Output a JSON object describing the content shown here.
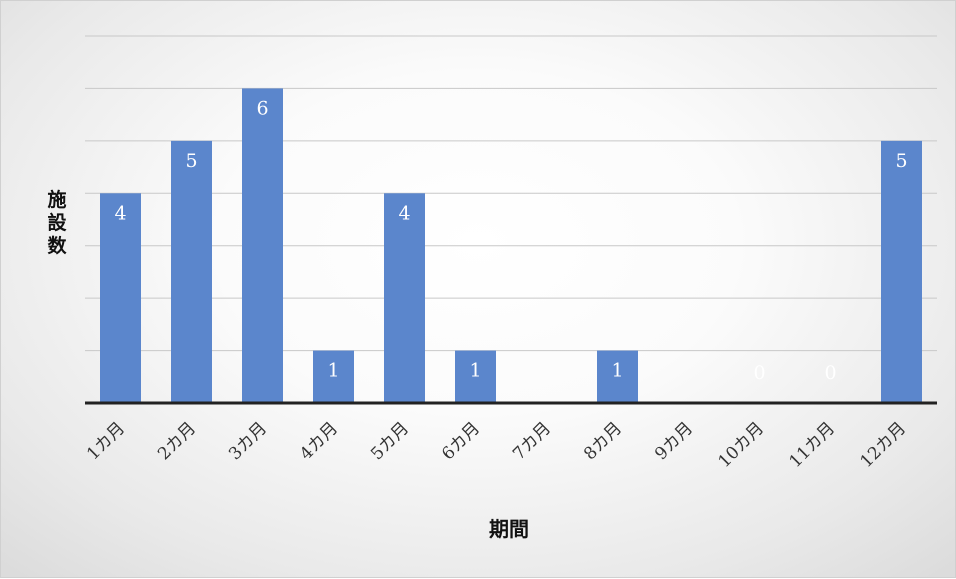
{
  "chart_data": {
    "type": "bar",
    "title": "",
    "xlabel": "期間",
    "ylabel": "施設数",
    "categories": [
      "1カ月",
      "2カ月",
      "3カ月",
      "4カ月",
      "5カ月",
      "6カ月",
      "7カ月",
      "8カ月",
      "9カ月",
      "10カ月",
      "11カ月",
      "12カ月"
    ],
    "values": [
      4,
      5,
      6,
      1,
      4,
      1,
      0,
      1,
      0,
      0,
      0,
      5
    ],
    "data_labels": [
      "4",
      "5",
      "6",
      "1",
      "4",
      "1",
      "",
      "1",
      "",
      "0",
      "0",
      "5"
    ],
    "ylim": [
      0,
      7
    ],
    "gridlines": true,
    "y_tick_labels_shown": false,
    "bar_color": "#5b86cc",
    "axis_color": "#222222"
  }
}
